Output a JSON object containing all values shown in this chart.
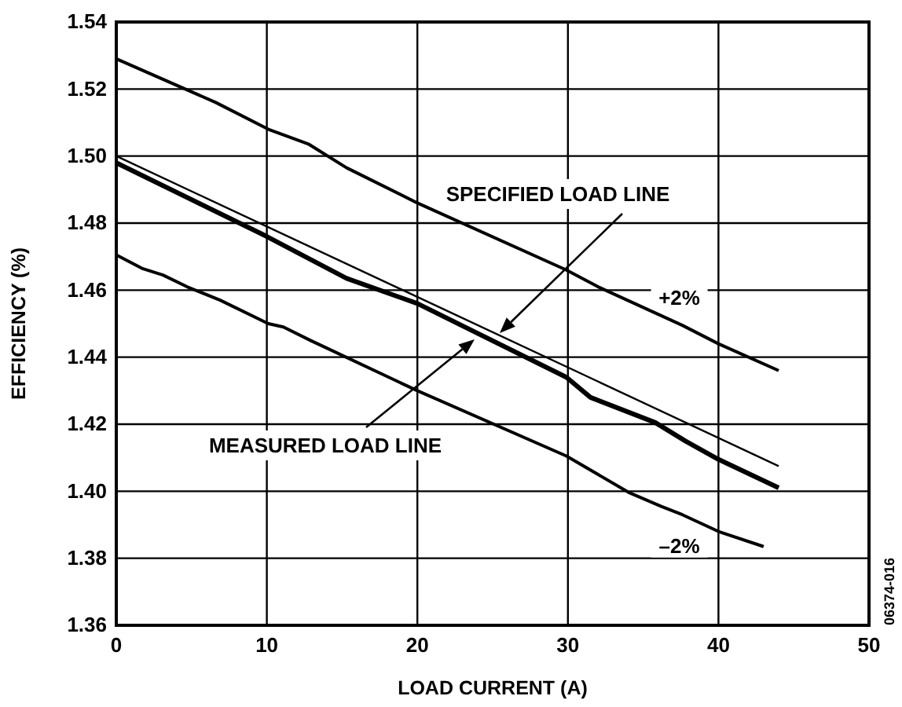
{
  "chart_data": {
    "type": "line",
    "xlabel": "LOAD CURRENT (A)",
    "ylabel": "EFFICIENCY (%)",
    "xlim": [
      0,
      50
    ],
    "xticks": [
      0,
      10,
      20,
      30,
      40,
      50
    ],
    "ylim": [
      1.36,
      1.54
    ],
    "yticks": [
      1.36,
      1.38,
      {
        "value": 1.4,
        "label": "1.40"
      },
      1.42,
      1.44,
      1.46,
      1.48,
      {
        "value": 1.5,
        "label": "1.50"
      },
      1.52,
      1.54
    ],
    "grid": true,
    "marker": "none",
    "line_style": "solid",
    "series": [
      {
        "color": "#000000",
        "x": [
          0,
          6.6,
          10.1,
          12.8,
          15.3,
          20,
          29.9,
          32,
          37.6,
          40,
          44
        ],
        "values": [
          1.529,
          1.516,
          1.508,
          1.5035,
          1.4965,
          1.486,
          1.466,
          1.461,
          1.4495,
          1.444,
          1.436
        ]
      },
      {
        "color": "#000000",
        "x": [
          0,
          44
        ],
        "values": [
          1.5,
          1.4075
        ]
      },
      {
        "color": "#000000",
        "x": [
          0,
          10,
          15.3,
          20,
          29.9,
          31.5,
          35.8,
          37.8,
          40,
          44
        ],
        "values": [
          1.498,
          1.476,
          1.4635,
          1.456,
          1.434,
          1.428,
          1.4205,
          1.415,
          1.4095,
          1.401
        ]
      },
      {
        "color": "#000000",
        "x": [
          0,
          1.7,
          3.1,
          4.7,
          6.9,
          10.1,
          11.1,
          12.9,
          20,
          29.9,
          34.1,
          36.2,
          37.6,
          40,
          43
        ],
        "values": [
          1.4705,
          1.4665,
          1.4645,
          1.461,
          1.457,
          1.45,
          1.449,
          1.445,
          1.43,
          1.4105,
          1.3995,
          1.3955,
          1.393,
          1.388,
          1.3835
        ]
      }
    ],
    "annotations": [
      "SPECIFIED LOAD LINE",
      "MEASURED LOAD LINE",
      {
        "text": "+2%",
        "x": 37.4,
        "y": 1.458
      },
      {
        "text": "–2%",
        "x": 37.4,
        "y": 1.384
      },
      "06374-016"
    ]
  }
}
